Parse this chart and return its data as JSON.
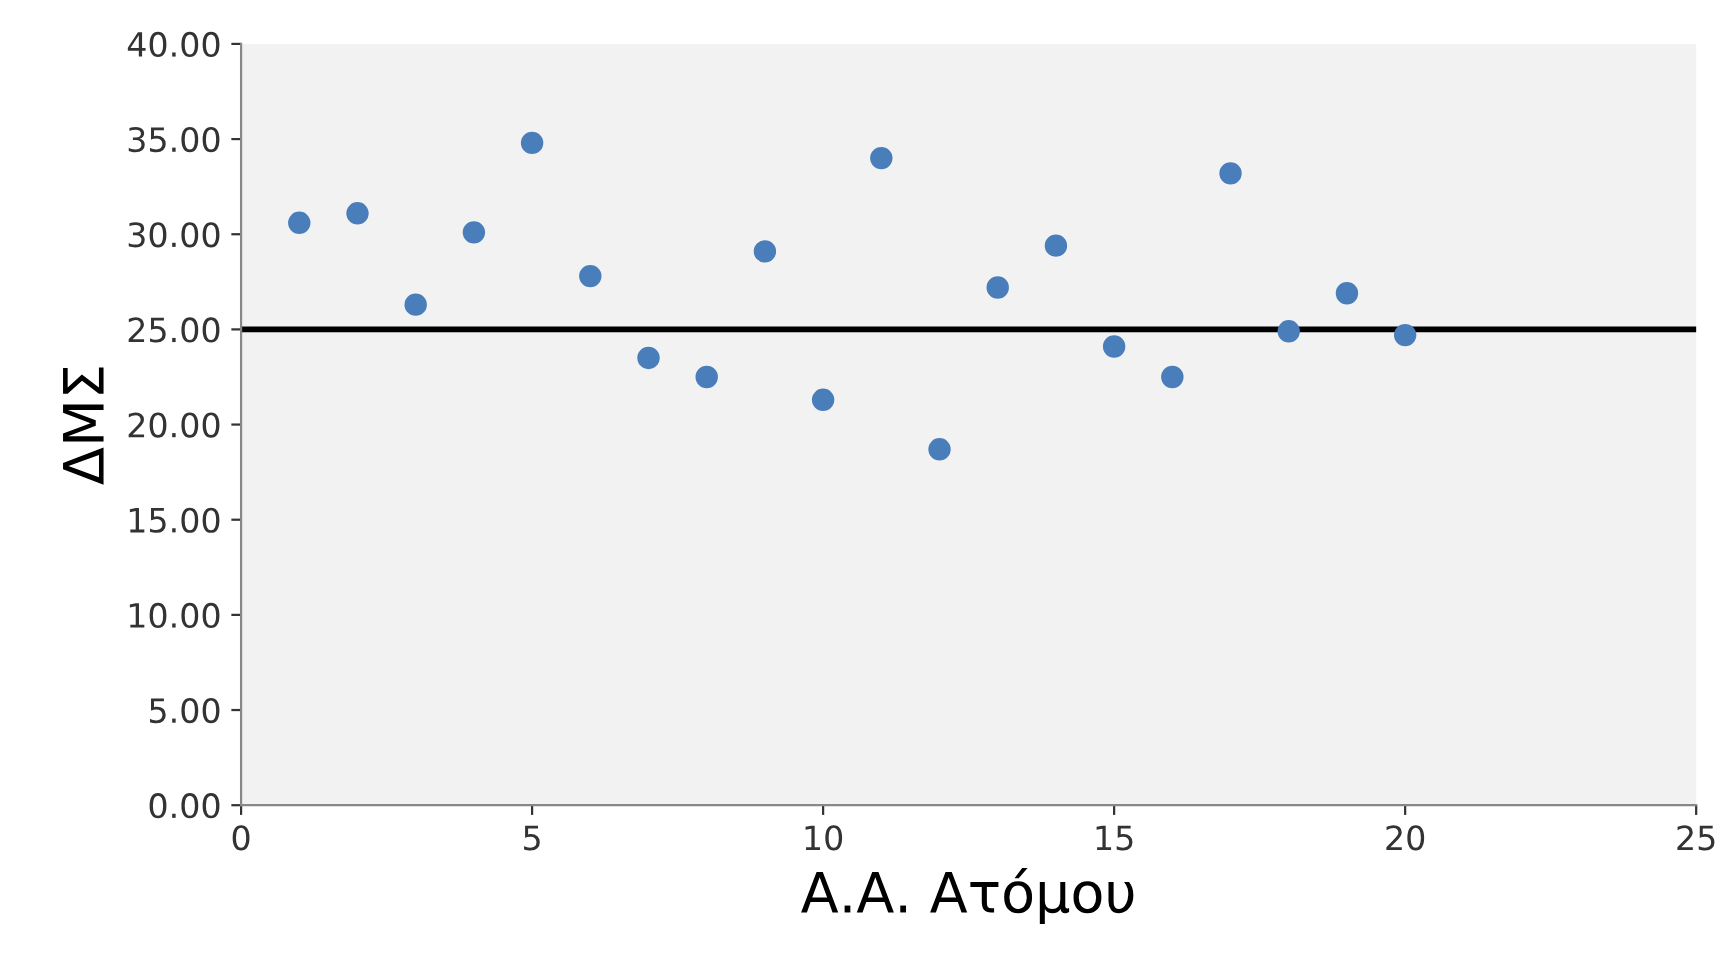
{
  "chart_data": {
    "type": "scatter",
    "xlabel": "Α.Α. Ατόμου",
    "ylabel": "ΔΜΣ",
    "x": [
      1,
      2,
      3,
      4,
      5,
      6,
      7,
      8,
      9,
      10,
      11,
      12,
      13,
      14,
      15,
      16,
      17,
      18,
      19,
      20
    ],
    "series": [
      {
        "color": "#4a7ebb",
        "values": [
          30.6,
          31.1,
          26.3,
          30.1,
          34.8,
          27.8,
          23.5,
          22.5,
          29.1,
          21.3,
          34.0,
          18.7,
          27.2,
          29.4,
          24.1,
          22.5,
          33.2,
          24.9,
          26.9,
          24.7
        ]
      }
    ],
    "xlim": [
      0,
      25
    ],
    "xticks": [
      0,
      5,
      10,
      15,
      20,
      25
    ],
    "ylim": [
      0,
      40
    ],
    "yticks": [
      {
        "value": 0,
        "label": "0.00"
      },
      {
        "value": 5,
        "label": "5.00"
      },
      {
        "value": 10,
        "label": "10.00"
      },
      {
        "value": 15,
        "label": "15.00"
      },
      {
        "value": 20,
        "label": "20.00"
      },
      {
        "value": 25,
        "label": "25.00"
      },
      {
        "value": 30,
        "label": "30.00"
      },
      {
        "value": 35,
        "label": "35.00"
      },
      {
        "value": 40,
        "label": "40.00"
      }
    ],
    "ref_lines": [
      {
        "axis": "y",
        "value": 25,
        "color": "#000000"
      }
    ],
    "grid": false,
    "legend": false,
    "marker": "circle"
  }
}
